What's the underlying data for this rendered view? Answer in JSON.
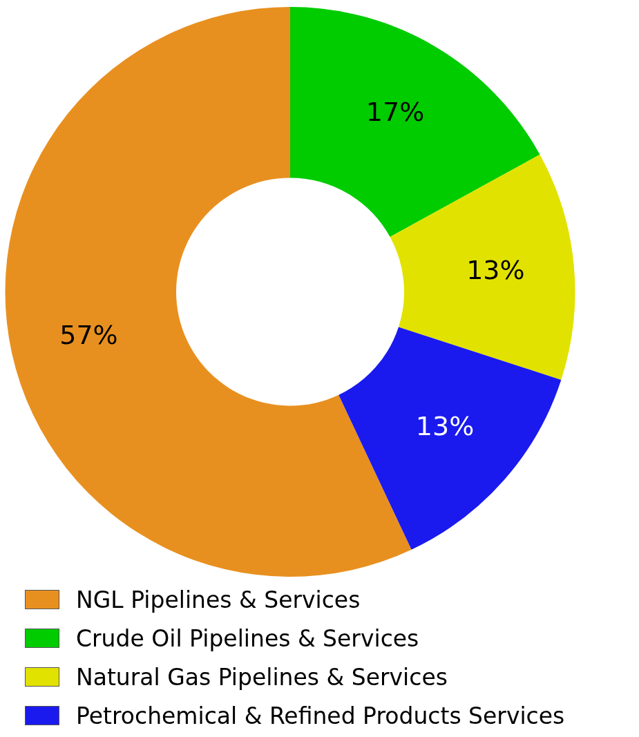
{
  "chart_data": {
    "type": "donut",
    "categories": [
      "NGL Pipelines & Services",
      "Crude Oil Pipelines & Services",
      "Natural Gas Pipelines & Services",
      "Petrochemical & Refined Products Services"
    ],
    "values": [
      57,
      17,
      13,
      13
    ],
    "colors": [
      "#e8901f",
      "#00cc00",
      "#e2e200",
      "#1a1aee"
    ],
    "value_labels": [
      "57%",
      "17%",
      "13%",
      "13%"
    ],
    "legend": "bottom"
  }
}
